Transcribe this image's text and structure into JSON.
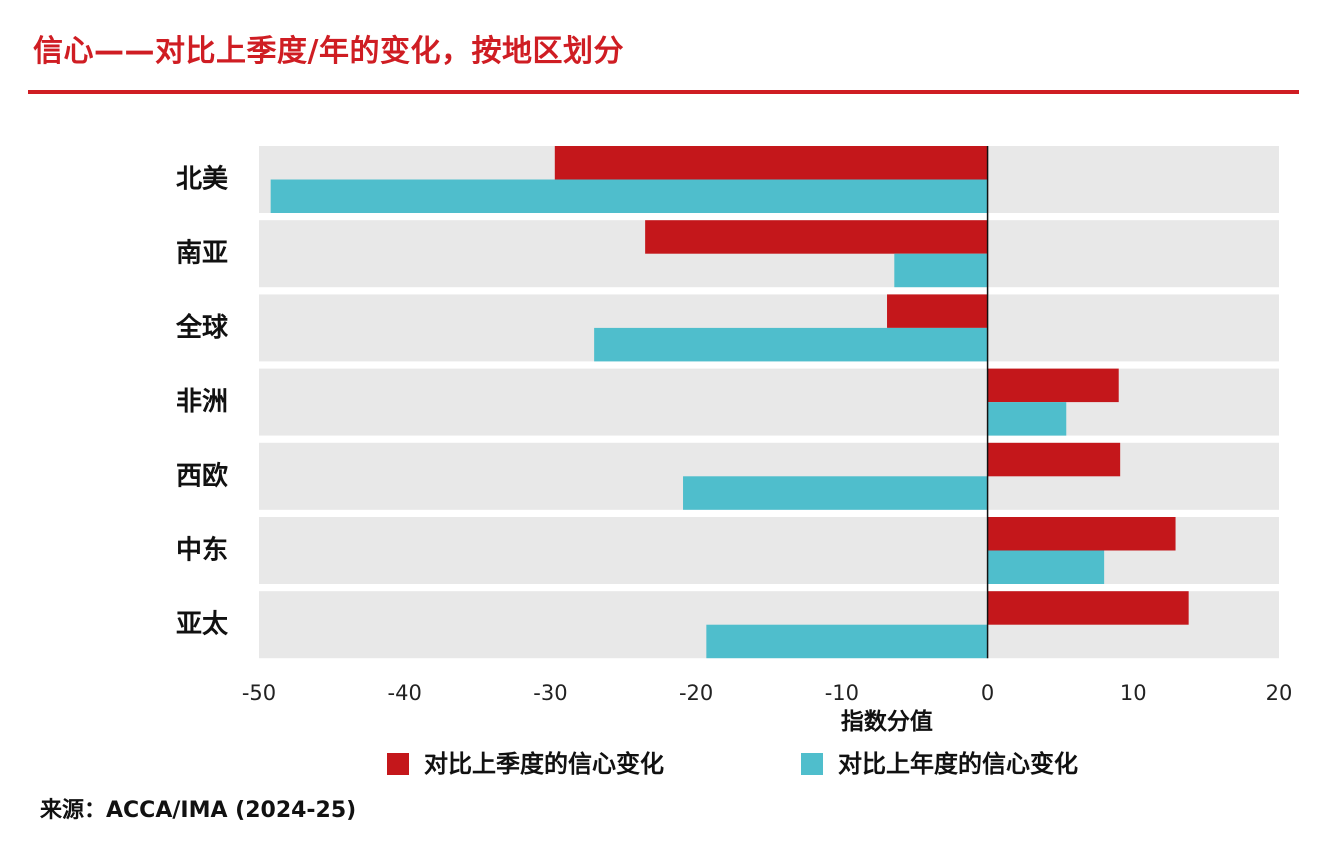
{
  "title": "信心——对比上季度/年的变化，按地区划分",
  "source": "来源：ACCA/IMA (2024-25)",
  "colors": {
    "title": "#cf1d23",
    "quarter": "#c4171b",
    "year": "#4fbecc",
    "band": "#e8e8e8"
  },
  "chart_data": {
    "type": "bar",
    "orientation": "horizontal",
    "categories": [
      "北美",
      "南亚",
      "全球",
      "非洲",
      "西欧",
      "中东",
      "亚太"
    ],
    "series": [
      {
        "name": "对比上季度的信心变化",
        "color": "#c4171b",
        "values": [
          -29.7,
          -23.5,
          -6.9,
          9.0,
          9.1,
          12.9,
          13.8
        ]
      },
      {
        "name": "对比上年度的信心变化",
        "color": "#4fbecc",
        "values": [
          -49.2,
          -6.4,
          -27.0,
          5.4,
          -20.9,
          8.0,
          -19.3
        ]
      }
    ],
    "xlabel": "指数分值",
    "xlim": [
      -50,
      20
    ],
    "xticks": [
      -50,
      -40,
      -30,
      -20,
      -10,
      0,
      10,
      20
    ],
    "legend_position": "bottom",
    "grid": false
  }
}
